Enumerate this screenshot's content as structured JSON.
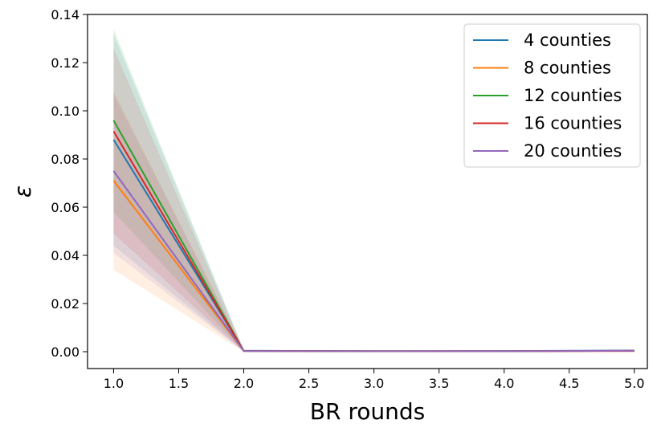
{
  "chart_data": {
    "type": "line",
    "title": "",
    "xlabel": "BR rounds",
    "ylabel": "ε",
    "xlim": [
      0.8,
      5.1
    ],
    "ylim": [
      -0.007,
      0.14
    ],
    "x": [
      1,
      2,
      3,
      4,
      5
    ],
    "xticks": [
      "1.0",
      "1.5",
      "2.0",
      "2.5",
      "3.0",
      "3.5",
      "4.0",
      "4.5",
      "5.0"
    ],
    "yticks": [
      "0.00",
      "0.02",
      "0.04",
      "0.06",
      "0.08",
      "0.10",
      "0.12",
      "0.14"
    ],
    "legend_position": "top-right",
    "grid": false,
    "series": [
      {
        "name": "4 counties",
        "color": "#1f77b4",
        "values": [
          0.088,
          0.0004,
          0.0002,
          0.0003,
          0.0005
        ],
        "lower": [
          0.044,
          0.0001,
          0.0,
          0.0,
          0.0001
        ],
        "upper": [
          0.132,
          0.0008,
          0.0005,
          0.0006,
          0.0009
        ]
      },
      {
        "name": "8 counties",
        "color": "#ff7f0e",
        "values": [
          0.071,
          0.0003,
          0.0002,
          0.0002,
          0.0003
        ],
        "lower": [
          0.034,
          0.0,
          0.0,
          0.0,
          0.0
        ],
        "upper": [
          0.108,
          0.0007,
          0.0005,
          0.0005,
          0.0007
        ]
      },
      {
        "name": "12 counties",
        "color": "#2ca02c",
        "values": [
          0.096,
          0.0003,
          0.0002,
          0.0002,
          0.0004
        ],
        "lower": [
          0.058,
          0.0,
          0.0,
          0.0,
          0.0001
        ],
        "upper": [
          0.134,
          0.0007,
          0.0005,
          0.0005,
          0.0008
        ]
      },
      {
        "name": "16 counties",
        "color": "#d62728",
        "values": [
          0.0915,
          0.0003,
          0.0002,
          0.0002,
          0.0003
        ],
        "lower": [
          0.049,
          0.0,
          0.0,
          0.0,
          0.0
        ],
        "upper": [
          0.126,
          0.0007,
          0.0005,
          0.0005,
          0.0007
        ]
      },
      {
        "name": "20 counties",
        "color": "#9467bd",
        "values": [
          0.075,
          0.0003,
          0.0002,
          0.0002,
          0.0004
        ],
        "lower": [
          0.041,
          0.0,
          0.0,
          0.0,
          0.0001
        ],
        "upper": [
          0.107,
          0.0007,
          0.0005,
          0.0005,
          0.0008
        ]
      }
    ]
  }
}
